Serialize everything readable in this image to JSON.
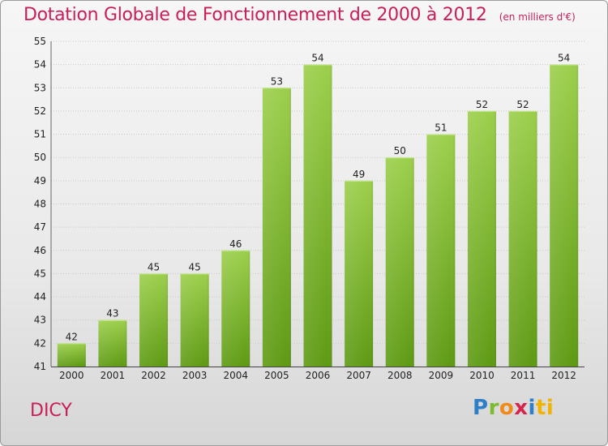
{
  "header": {
    "title": "Dotation Globale de Fonctionnement de 2000 à 2012",
    "unit": "(en milliers d'€)"
  },
  "commune": "DICY",
  "logo": {
    "letters": [
      "P",
      "r",
      "o",
      "x",
      "i",
      "ti"
    ]
  },
  "colors": {
    "title": "#c81e5a",
    "bar_top": "#9ccf4c",
    "bar_bottom": "#5e9a14",
    "grid": "#c8c8c8"
  },
  "chart_data": {
    "type": "bar",
    "title": "Dotation Globale de Fonctionnement de 2000 à 2012",
    "categories": [
      "2000",
      "2001",
      "2002",
      "2003",
      "2004",
      "2005",
      "2006",
      "2007",
      "2008",
      "2009",
      "2010",
      "2011",
      "2012"
    ],
    "values": [
      42,
      43,
      45,
      45,
      46,
      53,
      54,
      49,
      50,
      51,
      52,
      52,
      54
    ],
    "ylim": [
      41,
      55
    ],
    "yticks": [
      "41",
      "42",
      "43",
      "44",
      "45",
      "46",
      "47",
      "48",
      "49",
      "50",
      "51",
      "52",
      "53",
      "54",
      "55"
    ],
    "grid": true,
    "xlabel": "",
    "ylabel": ""
  }
}
